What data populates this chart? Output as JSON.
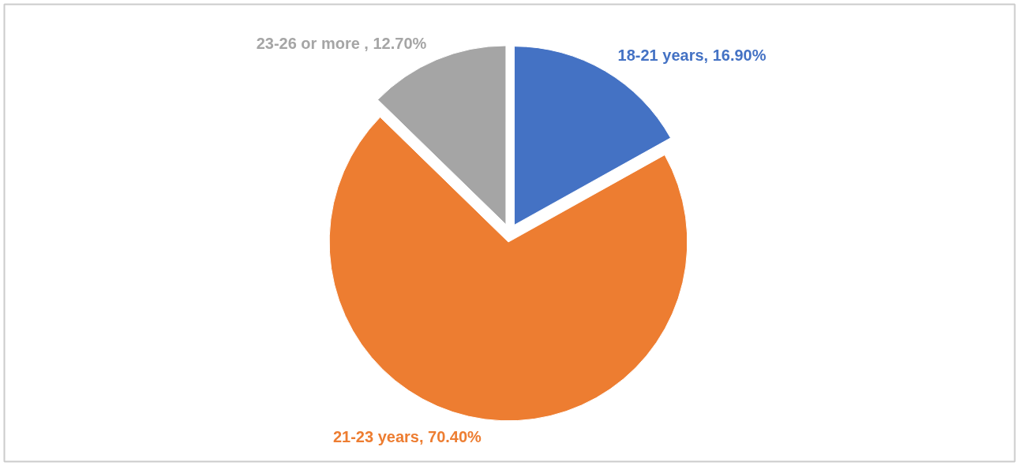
{
  "chart_data": {
    "type": "pie",
    "categories": [
      "18-21 years",
      "21-23 years",
      "23-26 or more "
    ],
    "values": [
      16.9,
      70.4,
      12.7
    ],
    "value_labels": [
      "16.90%",
      "70.40%",
      "12.70%"
    ],
    "colors": [
      "#4472c4",
      "#ed7d31",
      "#a5a5a5"
    ],
    "legend": false
  }
}
